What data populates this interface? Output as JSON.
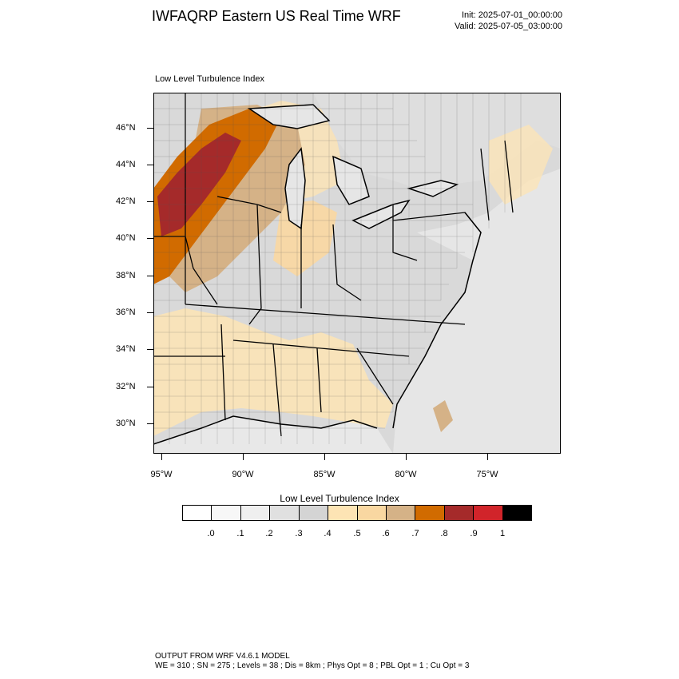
{
  "header": {
    "title": "IWFAQRP Eastern US Real Time WRF",
    "init": "Init: 2025-07-01_00:00:00",
    "valid": "Valid: 2025-07-05_03:00:00"
  },
  "map": {
    "label": "Low Level Turbulence Index",
    "lat_labels": [
      "46°N",
      "44°N",
      "42°N",
      "40°N",
      "38°N",
      "36°N",
      "34°N",
      "32°N",
      "30°N"
    ],
    "lon_labels": [
      "95°W",
      "90°W",
      "85°W",
      "80°W",
      "75°W"
    ],
    "colors": {
      "land_gray": "#d6d6d6",
      "water": "#ebebeb",
      "orange_light": "#fde4b4",
      "orange_mid": "#f9d7a1",
      "tan": "#d5b287",
      "dark_orange": "#d16b00",
      "brick": "#a52a2a"
    }
  },
  "colorbar": {
    "title": "Low Level Turbulence Index",
    "labels": [
      ".0",
      ".1",
      ".2",
      ".3",
      ".4",
      ".5",
      ".6",
      ".7",
      ".8",
      ".9",
      "1"
    ],
    "colors": [
      "#ffffff",
      "#f7f7f7",
      "#efefef",
      "#e0e0e0",
      "#d4d4d4",
      "#fde4b4",
      "#f9d7a1",
      "#d5b287",
      "#d16b00",
      "#a52a2a",
      "#d1242a",
      "#000000"
    ]
  },
  "footer": {
    "line1": "OUTPUT FROM WRF V4.6.1 MODEL",
    "line2": "WE = 310 ; SN = 275 ; Levels = 38 ; Dis = 8km ; Phys Opt = 8 ; PBL Opt = 1 ; Cu Opt = 3"
  }
}
